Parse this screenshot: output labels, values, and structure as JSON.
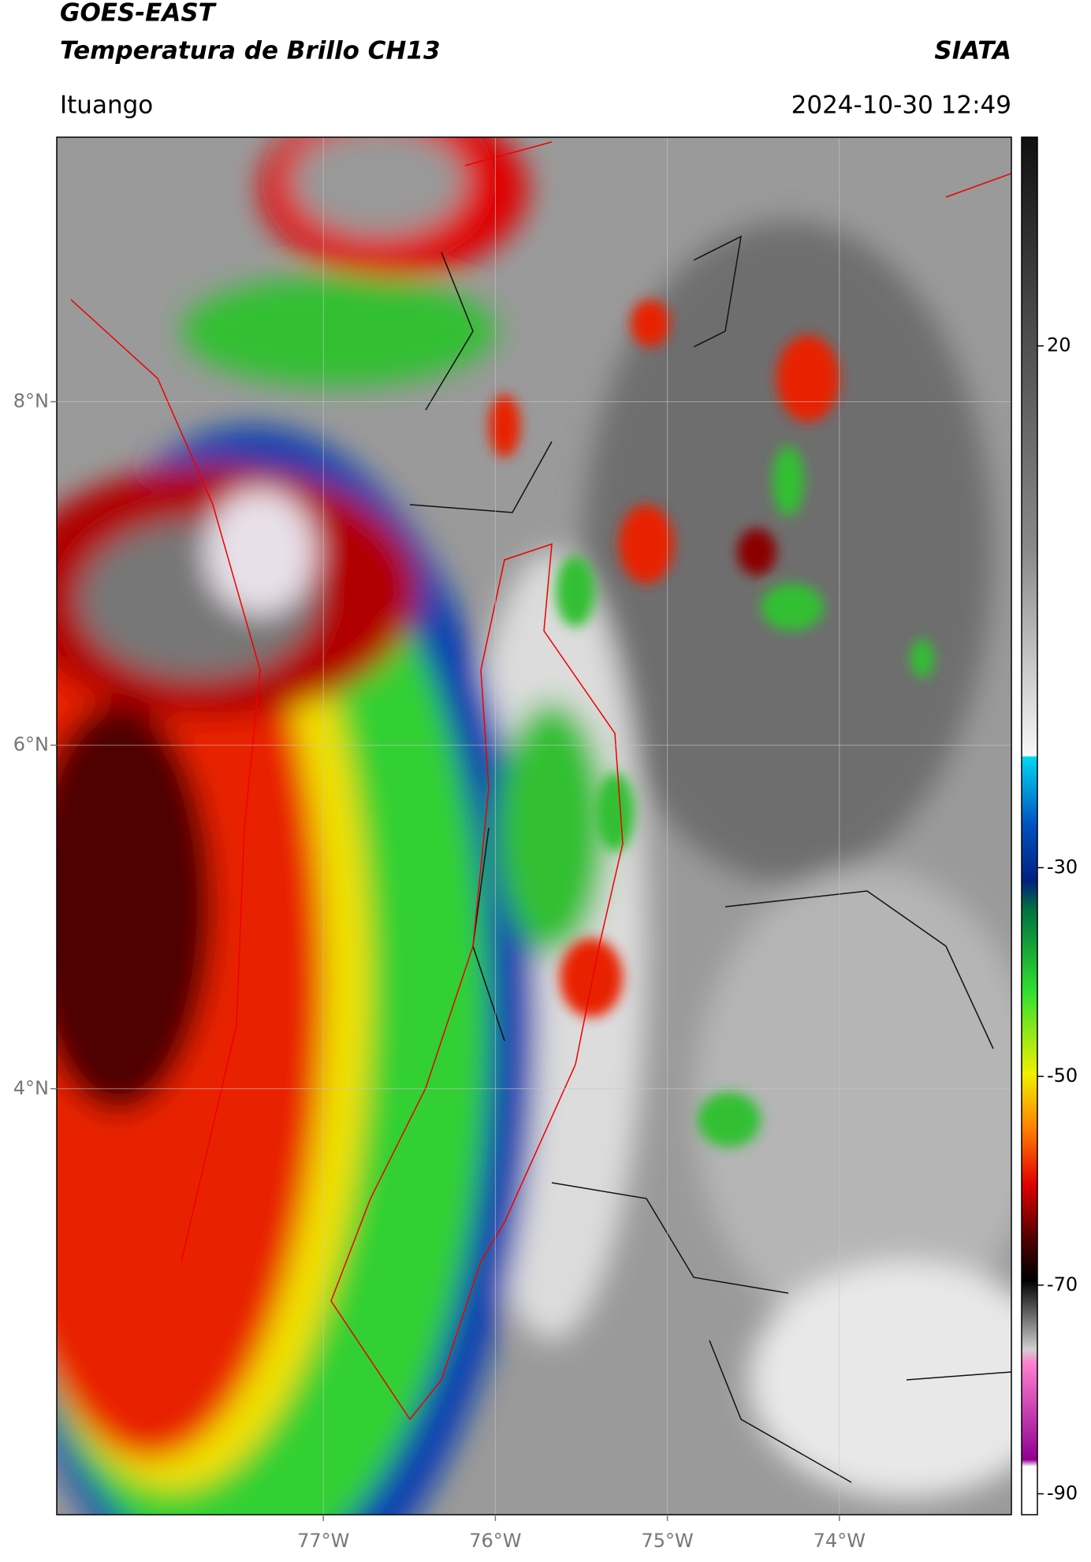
{
  "map": {
    "title": "GOES-EAST",
    "subtitle": "Temperatura de Brillo CH13",
    "source": "SIATA",
    "place": "Ituango",
    "date": "2024-10-30 12:49",
    "xlim": [
      -78.55,
      -73.0
    ],
    "ylim": [
      1.52,
      9.54
    ],
    "xticks": [
      {
        "value": -77,
        "label": "77°W"
      },
      {
        "value": -76,
        "label": "76°W"
      },
      {
        "value": -75,
        "label": "75°W"
      },
      {
        "value": -74,
        "label": "74°W"
      }
    ],
    "yticks": [
      {
        "value": 8,
        "label": "8°N"
      },
      {
        "value": 6,
        "label": "6°N"
      },
      {
        "value": 4,
        "label": "4°N"
      }
    ],
    "colorbar": {
      "lim": [
        -92,
        40
      ],
      "ticks": [
        20,
        -30,
        -50,
        -70,
        -90
      ]
    }
  }
}
